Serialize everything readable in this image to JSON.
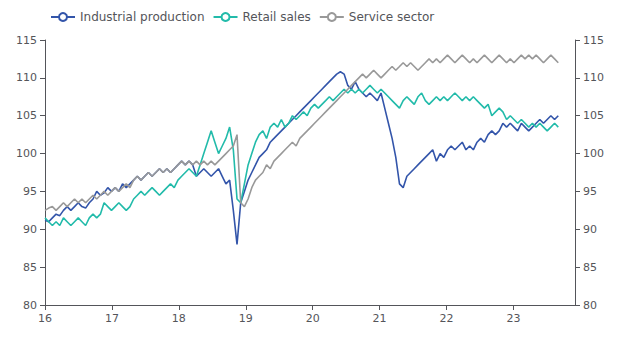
{
  "chart_data": {
    "type": "line",
    "x": [
      16.0,
      16.0552,
      16.1104,
      16.1655,
      16.2207,
      16.2759,
      16.3311,
      16.3863,
      16.4414,
      16.4966,
      16.5518,
      16.607,
      16.6622,
      16.7173,
      16.7725,
      16.8277,
      16.8829,
      16.9381,
      16.9932,
      17.0484,
      17.1036,
      17.1588,
      17.214,
      17.2691,
      17.3243,
      17.3795,
      17.4347,
      17.4899,
      17.545,
      17.6002,
      17.6554,
      17.7106,
      17.7658,
      17.8209,
      17.8761,
      17.9313,
      17.9865,
      18.0417,
      18.0968,
      18.152,
      18.2072,
      18.2624,
      18.3176,
      18.3727,
      18.4279,
      18.4831,
      18.5383,
      18.5935,
      18.6486,
      18.7038,
      18.759,
      18.8142,
      18.8694,
      18.9245,
      18.9797,
      19.0349,
      19.0901,
      19.1453,
      19.2004,
      19.2556,
      19.3108,
      19.366,
      19.4212,
      19.4763,
      19.5315,
      19.5867,
      19.6419,
      19.6971,
      19.7522,
      19.8074,
      19.8626,
      19.9178,
      19.9729,
      20.0281,
      20.0833,
      20.1385,
      20.1937,
      20.2488,
      20.304,
      20.3592,
      20.4144,
      20.4696,
      20.5247,
      20.5799,
      20.6351,
      20.6903,
      20.7455,
      20.8006,
      20.8558,
      20.911,
      20.9662,
      21.0214,
      21.0765,
      21.1317,
      21.1869,
      21.2421,
      21.2973,
      21.3524,
      21.4076,
      21.4628,
      21.518,
      21.5732,
      21.6283,
      21.6835,
      21.7387,
      21.7939,
      21.8491,
      21.9042,
      21.9594,
      22.0146,
      22.0698,
      22.125,
      22.1801,
      22.2353,
      22.2905,
      22.3457,
      22.4009,
      22.456,
      22.5112,
      22.5664,
      22.6216,
      22.6768,
      22.7319,
      22.7871,
      22.8423,
      22.8975,
      22.9527,
      23.0078,
      23.063,
      23.1182,
      23.1734,
      23.2286,
      23.2837,
      23.3389,
      23.3941,
      23.4493,
      23.5045,
      23.5596,
      23.6148,
      23.67
    ],
    "series": [
      {
        "name": "Industrial production",
        "color": "#3355aa",
        "values": [
          91.2,
          91.0,
          91.5,
          92.0,
          91.8,
          92.5,
          93.0,
          92.5,
          93.0,
          93.5,
          93.0,
          92.8,
          93.5,
          94.0,
          95.0,
          94.5,
          94.8,
          95.5,
          95.0,
          95.5,
          95.0,
          96.0,
          95.5,
          96.0,
          96.5,
          97.0,
          96.5,
          97.0,
          97.5,
          97.0,
          97.5,
          98.0,
          97.5,
          98.0,
          97.5,
          98.0,
          98.5,
          99.0,
          98.5,
          99.0,
          98.5,
          97.0,
          97.5,
          98.0,
          97.5,
          97.0,
          97.5,
          98.0,
          97.0,
          96.0,
          96.5,
          92.5,
          88.0,
          93.5,
          95.0,
          96.5,
          97.5,
          98.5,
          99.5,
          100.0,
          100.5,
          101.5,
          102.0,
          102.5,
          103.0,
          103.5,
          104.0,
          104.5,
          105.0,
          105.5,
          106.0,
          106.5,
          107.0,
          107.5,
          108.0,
          108.5,
          109.0,
          109.5,
          110.0,
          110.5,
          110.8,
          110.5,
          109.0,
          108.5,
          109.5,
          108.5,
          108.0,
          107.5,
          108.0,
          107.5,
          107.0,
          108.0,
          106.0,
          104.0,
          102.0,
          99.5,
          96.0,
          95.5,
          97.0,
          97.5,
          98.0,
          98.5,
          99.0,
          99.5,
          100.0,
          100.5,
          99.0,
          100.0,
          99.5,
          100.5,
          101.0,
          100.5,
          101.0,
          101.5,
          100.5,
          101.0,
          100.5,
          101.5,
          102.0,
          101.5,
          102.5,
          103.0,
          102.5,
          103.0,
          104.0,
          103.5,
          104.0,
          103.5,
          103.0,
          104.0,
          103.5,
          103.0,
          103.5,
          104.0,
          104.5,
          104.0,
          104.5,
          105.0,
          104.5,
          105.0
        ]
      },
      {
        "name": "Retail sales",
        "color": "#22bbaa",
        "values": [
          91.5,
          91.0,
          90.5,
          91.0,
          90.5,
          91.5,
          91.0,
          90.5,
          91.0,
          91.5,
          91.0,
          90.5,
          91.5,
          92.0,
          91.5,
          92.0,
          93.5,
          93.0,
          92.5,
          93.0,
          93.5,
          93.0,
          92.5,
          93.0,
          94.0,
          94.5,
          95.0,
          94.5,
          95.0,
          95.5,
          95.0,
          94.5,
          95.0,
          95.5,
          96.0,
          95.5,
          96.5,
          97.0,
          97.5,
          98.0,
          97.5,
          97.0,
          98.5,
          100.0,
          101.5,
          103.0,
          101.5,
          100.0,
          101.0,
          102.0,
          103.5,
          100.5,
          94.0,
          93.5,
          96.0,
          98.5,
          100.0,
          101.5,
          102.5,
          103.0,
          102.0,
          103.5,
          104.0,
          103.5,
          104.5,
          103.5,
          104.0,
          105.0,
          104.5,
          105.0,
          105.5,
          105.0,
          106.0,
          106.5,
          106.0,
          106.5,
          107.0,
          107.5,
          107.0,
          107.5,
          108.0,
          108.5,
          108.0,
          108.5,
          108.0,
          108.5,
          108.0,
          108.5,
          109.0,
          108.5,
          108.0,
          108.5,
          108.0,
          107.5,
          107.0,
          106.5,
          106.0,
          107.0,
          107.5,
          107.0,
          106.5,
          107.5,
          108.0,
          107.0,
          106.5,
          107.0,
          107.5,
          107.0,
          107.5,
          107.0,
          107.5,
          108.0,
          107.5,
          107.0,
          107.5,
          107.0,
          107.5,
          107.0,
          106.5,
          106.0,
          106.5,
          105.0,
          105.5,
          106.0,
          105.5,
          104.5,
          105.0,
          104.5,
          104.0,
          104.5,
          104.0,
          103.5,
          104.0,
          103.5,
          104.0,
          103.5,
          103.0,
          103.5,
          104.0,
          103.5
        ]
      },
      {
        "name": "Service sector",
        "color": "#999999",
        "values": [
          92.5,
          92.8,
          93.0,
          92.5,
          93.0,
          93.5,
          93.0,
          93.5,
          94.0,
          93.5,
          94.0,
          93.5,
          94.0,
          94.5,
          94.0,
          94.5,
          95.0,
          94.5,
          95.0,
          95.5,
          95.0,
          95.5,
          96.0,
          95.5,
          96.5,
          97.0,
          96.5,
          97.0,
          97.5,
          97.0,
          97.5,
          98.0,
          97.5,
          98.0,
          97.5,
          98.0,
          98.5,
          99.0,
          98.5,
          99.0,
          98.5,
          99.0,
          98.5,
          99.0,
          98.5,
          99.0,
          98.5,
          99.0,
          99.5,
          100.0,
          100.5,
          101.0,
          102.5,
          93.5,
          93.0,
          94.0,
          95.5,
          96.5,
          97.0,
          97.5,
          98.5,
          98.0,
          99.0,
          99.5,
          100.0,
          100.5,
          101.0,
          101.5,
          101.0,
          102.0,
          102.5,
          103.0,
          103.5,
          104.0,
          104.5,
          105.0,
          105.5,
          106.0,
          106.5,
          107.0,
          107.5,
          108.0,
          108.5,
          109.0,
          109.5,
          110.0,
          110.5,
          110.0,
          110.5,
          111.0,
          110.5,
          110.0,
          110.5,
          111.0,
          111.5,
          111.0,
          111.5,
          112.0,
          111.5,
          112.0,
          111.5,
          111.0,
          111.5,
          112.0,
          112.5,
          112.0,
          112.5,
          112.0,
          112.5,
          113.0,
          112.5,
          112.0,
          112.5,
          113.0,
          112.5,
          112.0,
          112.5,
          112.0,
          112.5,
          113.0,
          112.5,
          112.0,
          112.5,
          113.0,
          112.5,
          112.0,
          112.5,
          112.0,
          112.5,
          113.0,
          112.5,
          113.0,
          112.5,
          113.0,
          112.5,
          112.0,
          112.5,
          113.0,
          112.5,
          112.0
        ]
      }
    ],
    "xlim": [
      16,
      23.92
    ],
    "xticks": [
      16,
      17,
      18,
      19,
      20,
      21,
      22,
      23
    ],
    "ylim": [
      80,
      115
    ],
    "yticks": [
      80,
      85,
      90,
      95,
      100,
      105,
      110,
      115
    ],
    "y2lim": [
      80,
      115
    ],
    "y2ticks": [
      80,
      85,
      90,
      95,
      100,
      105,
      110,
      115
    ],
    "legend": "upper left",
    "grid": false
  }
}
